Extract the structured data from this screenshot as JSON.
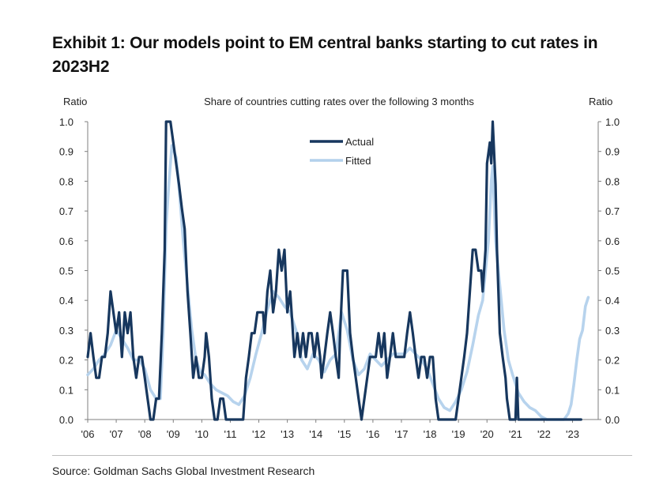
{
  "title": "Exhibit 1: Our models point to EM central banks starting to cut rates in 2023H2",
  "source": "Source: Goldman Sachs Global Investment Research",
  "colors": {
    "actual": "#17375e",
    "fitted": "#b3d1ec",
    "axis": "#7f7f7f"
  },
  "chart_data": {
    "type": "line",
    "subtitle": "Share of countries cutting rates over the following 3 months",
    "ylabel_left": "Ratio",
    "ylabel_right": "Ratio",
    "ylim": [
      0,
      1.0
    ],
    "yticks": [
      "0.0",
      "0.1",
      "0.2",
      "0.3",
      "0.4",
      "0.5",
      "0.6",
      "0.7",
      "0.8",
      "0.9",
      "1.0"
    ],
    "xlim": [
      2006,
      2023.9
    ],
    "xticks": [
      {
        "value": 2006,
        "label": "'06"
      },
      {
        "value": 2007,
        "label": "'07"
      },
      {
        "value": 2008,
        "label": "'08"
      },
      {
        "value": 2009,
        "label": "'09"
      },
      {
        "value": 2010,
        "label": "'10"
      },
      {
        "value": 2011,
        "label": "'11"
      },
      {
        "value": 2012,
        "label": "'12"
      },
      {
        "value": 2013,
        "label": "'13"
      },
      {
        "value": 2014,
        "label": "'14"
      },
      {
        "value": 2015,
        "label": "'15"
      },
      {
        "value": 2016,
        "label": "'16"
      },
      {
        "value": 2017,
        "label": "'17"
      },
      {
        "value": 2018,
        "label": "'18"
      },
      {
        "value": 2019,
        "label": "'19"
      },
      {
        "value": 2020,
        "label": "'20"
      },
      {
        "value": 2021,
        "label": "'21"
      },
      {
        "value": 2022,
        "label": "'22"
      },
      {
        "value": 2023,
        "label": "'23"
      }
    ],
    "legend_position": "top-center",
    "series": [
      {
        "name": "Actual",
        "points": [
          [
            2006.0,
            0.21
          ],
          [
            2006.1,
            0.29
          ],
          [
            2006.2,
            0.21
          ],
          [
            2006.3,
            0.14
          ],
          [
            2006.4,
            0.14
          ],
          [
            2006.5,
            0.21
          ],
          [
            2006.6,
            0.21
          ],
          [
            2006.7,
            0.29
          ],
          [
            2006.8,
            0.43
          ],
          [
            2006.9,
            0.36
          ],
          [
            2007.0,
            0.29
          ],
          [
            2007.1,
            0.36
          ],
          [
            2007.2,
            0.21
          ],
          [
            2007.3,
            0.36
          ],
          [
            2007.4,
            0.29
          ],
          [
            2007.5,
            0.36
          ],
          [
            2007.6,
            0.21
          ],
          [
            2007.7,
            0.14
          ],
          [
            2007.8,
            0.21
          ],
          [
            2007.9,
            0.21
          ],
          [
            2008.0,
            0.14
          ],
          [
            2008.1,
            0.07
          ],
          [
            2008.2,
            0.0
          ],
          [
            2008.3,
            0.0
          ],
          [
            2008.4,
            0.07
          ],
          [
            2008.5,
            0.07
          ],
          [
            2008.6,
            0.29
          ],
          [
            2008.7,
            0.57
          ],
          [
            2008.75,
            1.0
          ],
          [
            2008.9,
            1.0
          ],
          [
            2009.0,
            0.93
          ],
          [
            2009.1,
            0.86
          ],
          [
            2009.2,
            0.79
          ],
          [
            2009.3,
            0.71
          ],
          [
            2009.4,
            0.64
          ],
          [
            2009.5,
            0.43
          ],
          [
            2009.6,
            0.29
          ],
          [
            2009.7,
            0.14
          ],
          [
            2009.8,
            0.21
          ],
          [
            2009.9,
            0.14
          ],
          [
            2010.0,
            0.14
          ],
          [
            2010.1,
            0.21
          ],
          [
            2010.15,
            0.29
          ],
          [
            2010.25,
            0.21
          ],
          [
            2010.35,
            0.07
          ],
          [
            2010.45,
            0.0
          ],
          [
            2010.55,
            0.0
          ],
          [
            2010.65,
            0.07
          ],
          [
            2010.75,
            0.07
          ],
          [
            2010.85,
            0.0
          ],
          [
            2010.95,
            0.0
          ],
          [
            2011.1,
            0.0
          ],
          [
            2011.3,
            0.0
          ],
          [
            2011.45,
            0.0
          ],
          [
            2011.55,
            0.14
          ],
          [
            2011.65,
            0.21
          ],
          [
            2011.75,
            0.29
          ],
          [
            2011.85,
            0.29
          ],
          [
            2011.95,
            0.36
          ],
          [
            2012.05,
            0.36
          ],
          [
            2012.15,
            0.36
          ],
          [
            2012.2,
            0.29
          ],
          [
            2012.3,
            0.43
          ],
          [
            2012.4,
            0.5
          ],
          [
            2012.5,
            0.36
          ],
          [
            2012.6,
            0.43
          ],
          [
            2012.7,
            0.57
          ],
          [
            2012.8,
            0.5
          ],
          [
            2012.9,
            0.57
          ],
          [
            2013.0,
            0.36
          ],
          [
            2013.1,
            0.43
          ],
          [
            2013.15,
            0.36
          ],
          [
            2013.25,
            0.21
          ],
          [
            2013.35,
            0.29
          ],
          [
            2013.45,
            0.21
          ],
          [
            2013.55,
            0.29
          ],
          [
            2013.65,
            0.21
          ],
          [
            2013.75,
            0.29
          ],
          [
            2013.85,
            0.29
          ],
          [
            2013.95,
            0.21
          ],
          [
            2014.05,
            0.29
          ],
          [
            2014.15,
            0.21
          ],
          [
            2014.2,
            0.14
          ],
          [
            2014.3,
            0.21
          ],
          [
            2014.4,
            0.29
          ],
          [
            2014.5,
            0.36
          ],
          [
            2014.6,
            0.29
          ],
          [
            2014.7,
            0.21
          ],
          [
            2014.8,
            0.14
          ],
          [
            2014.85,
            0.29
          ],
          [
            2014.95,
            0.5
          ],
          [
            2015.1,
            0.5
          ],
          [
            2015.2,
            0.29
          ],
          [
            2015.3,
            0.21
          ],
          [
            2015.4,
            0.14
          ],
          [
            2015.5,
            0.07
          ],
          [
            2015.6,
            0.0
          ],
          [
            2015.7,
            0.07
          ],
          [
            2015.8,
            0.14
          ],
          [
            2015.9,
            0.21
          ],
          [
            2016.0,
            0.21
          ],
          [
            2016.1,
            0.21
          ],
          [
            2016.2,
            0.29
          ],
          [
            2016.3,
            0.21
          ],
          [
            2016.4,
            0.29
          ],
          [
            2016.5,
            0.14
          ],
          [
            2016.6,
            0.21
          ],
          [
            2016.7,
            0.29
          ],
          [
            2016.8,
            0.21
          ],
          [
            2016.9,
            0.21
          ],
          [
            2017.0,
            0.21
          ],
          [
            2017.1,
            0.21
          ],
          [
            2017.2,
            0.29
          ],
          [
            2017.3,
            0.36
          ],
          [
            2017.4,
            0.29
          ],
          [
            2017.5,
            0.21
          ],
          [
            2017.6,
            0.14
          ],
          [
            2017.7,
            0.21
          ],
          [
            2017.8,
            0.21
          ],
          [
            2017.9,
            0.14
          ],
          [
            2018.0,
            0.21
          ],
          [
            2018.1,
            0.21
          ],
          [
            2018.2,
            0.07
          ],
          [
            2018.3,
            0.0
          ],
          [
            2018.4,
            0.0
          ],
          [
            2018.5,
            0.0
          ],
          [
            2018.6,
            0.0
          ],
          [
            2018.7,
            0.0
          ],
          [
            2018.8,
            0.0
          ],
          [
            2018.9,
            0.0
          ],
          [
            2019.0,
            0.07
          ],
          [
            2019.1,
            0.14
          ],
          [
            2019.2,
            0.21
          ],
          [
            2019.3,
            0.29
          ],
          [
            2019.4,
            0.43
          ],
          [
            2019.5,
            0.57
          ],
          [
            2019.6,
            0.57
          ],
          [
            2019.7,
            0.5
          ],
          [
            2019.8,
            0.5
          ],
          [
            2019.85,
            0.43
          ],
          [
            2019.95,
            0.57
          ],
          [
            2020.0,
            0.86
          ],
          [
            2020.1,
            0.93
          ],
          [
            2020.15,
            0.86
          ],
          [
            2020.2,
            1.0
          ],
          [
            2020.3,
            0.79
          ],
          [
            2020.35,
            0.57
          ],
          [
            2020.45,
            0.29
          ],
          [
            2020.55,
            0.21
          ],
          [
            2020.65,
            0.14
          ],
          [
            2020.7,
            0.07
          ],
          [
            2020.8,
            0.0
          ],
          [
            2020.9,
            0.0
          ],
          [
            2021.0,
            0.0
          ],
          [
            2021.05,
            0.14
          ],
          [
            2021.1,
            0.0
          ],
          [
            2021.3,
            0.0
          ],
          [
            2021.6,
            0.0
          ],
          [
            2022.0,
            0.0
          ],
          [
            2022.5,
            0.0
          ],
          [
            2022.9,
            0.0
          ],
          [
            2023.3,
            0.0
          ]
        ]
      },
      {
        "name": "Fitted",
        "points": [
          [
            2006.0,
            0.15
          ],
          [
            2006.2,
            0.17
          ],
          [
            2006.4,
            0.2
          ],
          [
            2006.6,
            0.22
          ],
          [
            2006.8,
            0.25
          ],
          [
            2007.0,
            0.3
          ],
          [
            2007.2,
            0.27
          ],
          [
            2007.4,
            0.24
          ],
          [
            2007.6,
            0.2
          ],
          [
            2007.8,
            0.2
          ],
          [
            2008.0,
            0.17
          ],
          [
            2008.2,
            0.1
          ],
          [
            2008.4,
            0.07
          ],
          [
            2008.55,
            0.07
          ],
          [
            2008.65,
            0.3
          ],
          [
            2008.75,
            0.65
          ],
          [
            2008.85,
            0.8
          ],
          [
            2008.95,
            0.92
          ],
          [
            2009.1,
            0.88
          ],
          [
            2009.2,
            0.78
          ],
          [
            2009.35,
            0.6
          ],
          [
            2009.5,
            0.45
          ],
          [
            2009.65,
            0.3
          ],
          [
            2009.8,
            0.2
          ],
          [
            2009.95,
            0.16
          ],
          [
            2010.1,
            0.15
          ],
          [
            2010.3,
            0.12
          ],
          [
            2010.5,
            0.1
          ],
          [
            2010.7,
            0.09
          ],
          [
            2010.9,
            0.08
          ],
          [
            2011.1,
            0.06
          ],
          [
            2011.3,
            0.05
          ],
          [
            2011.5,
            0.08
          ],
          [
            2011.7,
            0.14
          ],
          [
            2011.9,
            0.22
          ],
          [
            2012.1,
            0.29
          ],
          [
            2012.3,
            0.37
          ],
          [
            2012.5,
            0.43
          ],
          [
            2012.7,
            0.41
          ],
          [
            2012.9,
            0.38
          ],
          [
            2013.1,
            0.36
          ],
          [
            2013.3,
            0.3
          ],
          [
            2013.5,
            0.2
          ],
          [
            2013.7,
            0.17
          ],
          [
            2013.9,
            0.22
          ],
          [
            2014.1,
            0.2
          ],
          [
            2014.3,
            0.16
          ],
          [
            2014.5,
            0.2
          ],
          [
            2014.7,
            0.22
          ],
          [
            2014.9,
            0.36
          ],
          [
            2015.1,
            0.3
          ],
          [
            2015.3,
            0.2
          ],
          [
            2015.5,
            0.15
          ],
          [
            2015.7,
            0.17
          ],
          [
            2015.9,
            0.22
          ],
          [
            2016.1,
            0.2
          ],
          [
            2016.3,
            0.18
          ],
          [
            2016.5,
            0.2
          ],
          [
            2016.7,
            0.22
          ],
          [
            2016.9,
            0.22
          ],
          [
            2017.1,
            0.22
          ],
          [
            2017.3,
            0.24
          ],
          [
            2017.5,
            0.22
          ],
          [
            2017.7,
            0.2
          ],
          [
            2017.9,
            0.17
          ],
          [
            2018.1,
            0.12
          ],
          [
            2018.3,
            0.07
          ],
          [
            2018.5,
            0.04
          ],
          [
            2018.7,
            0.03
          ],
          [
            2018.9,
            0.06
          ],
          [
            2019.1,
            0.1
          ],
          [
            2019.3,
            0.16
          ],
          [
            2019.5,
            0.25
          ],
          [
            2019.7,
            0.35
          ],
          [
            2019.85,
            0.4
          ],
          [
            2019.95,
            0.5
          ],
          [
            2020.05,
            0.6
          ],
          [
            2020.15,
            0.8
          ],
          [
            2020.2,
            0.85
          ],
          [
            2020.3,
            0.6
          ],
          [
            2020.45,
            0.45
          ],
          [
            2020.6,
            0.3
          ],
          [
            2020.75,
            0.2
          ],
          [
            2020.9,
            0.15
          ],
          [
            2021.1,
            0.09
          ],
          [
            2021.3,
            0.06
          ],
          [
            2021.5,
            0.04
          ],
          [
            2021.7,
            0.03
          ],
          [
            2021.9,
            0.01
          ],
          [
            2022.1,
            0.0
          ],
          [
            2022.3,
            0.0
          ],
          [
            2022.5,
            0.0
          ],
          [
            2022.7,
            0.0
          ],
          [
            2022.85,
            0.02
          ],
          [
            2022.95,
            0.05
          ],
          [
            2023.05,
            0.12
          ],
          [
            2023.15,
            0.2
          ],
          [
            2023.25,
            0.27
          ],
          [
            2023.35,
            0.3
          ],
          [
            2023.45,
            0.38
          ],
          [
            2023.55,
            0.41
          ]
        ]
      }
    ]
  }
}
